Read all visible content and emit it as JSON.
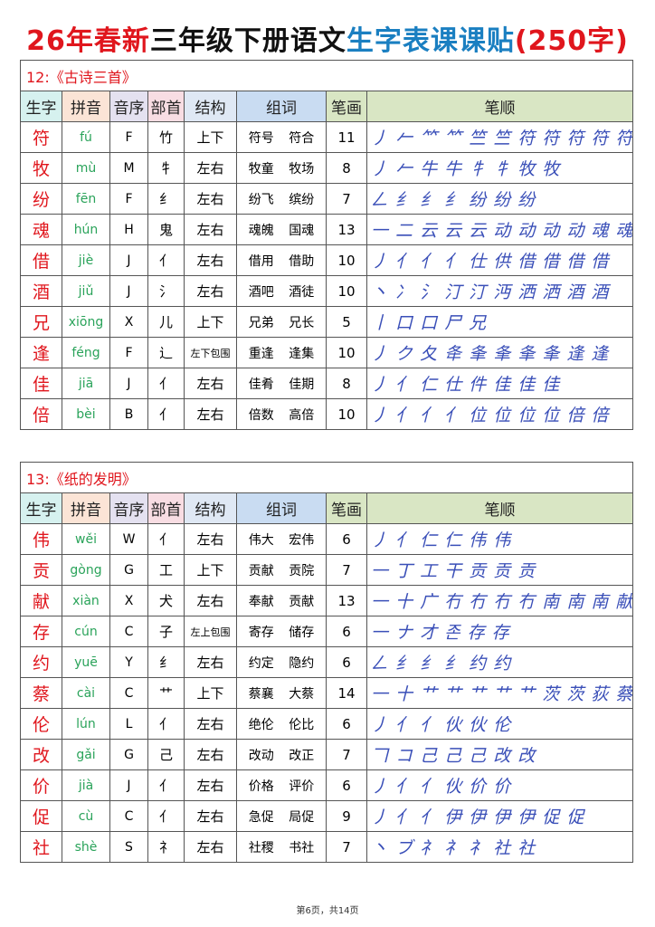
{
  "title": {
    "part1": "26年春新",
    "part2": "三年级下册语文",
    "part3": "生字表课课贴",
    "part4": "(250字)"
  },
  "headers": [
    "生字",
    "拼音",
    "音序",
    "部首",
    "结构",
    "组词",
    "笔画",
    "笔顺"
  ],
  "lessons": [
    {
      "title": "12:《古诗三首》",
      "rows": [
        {
          "char": "符",
          "pinyin": "fú",
          "order": "F",
          "radical": "竹",
          "structure": "上下",
          "words": "符号 符合",
          "strokes": "11",
          "sequence": "丿 𠂉 ⺮ ⺮ 竺 竺 符 符 符 符 符"
        },
        {
          "char": "牧",
          "pinyin": "mù",
          "order": "M",
          "radical": "牜",
          "structure": "左右",
          "words": "牧童 牧场",
          "strokes": "8",
          "sequence": "丿 𠂉 牛 牛 牜 牜 牧 牧"
        },
        {
          "char": "纷",
          "pinyin": "fēn",
          "order": "F",
          "radical": "纟",
          "structure": "左右",
          "words": "纷飞 缤纷",
          "strokes": "7",
          "sequence": "𠃋 纟 纟 纟 纷 纷 纷"
        },
        {
          "char": "魂",
          "pinyin": "hún",
          "order": "H",
          "radical": "鬼",
          "structure": "左右",
          "words": "魂魄 国魂",
          "strokes": "13",
          "sequence": "一 二 云 云 云 动 动 动 动 魂 魂 魂 魂"
        },
        {
          "char": "借",
          "pinyin": "jiè",
          "order": "J",
          "radical": "亻",
          "structure": "左右",
          "words": "借用 借助",
          "strokes": "10",
          "sequence": "丿 亻 亻 亻 仕 供 借 借 借 借"
        },
        {
          "char": "酒",
          "pinyin": "jiǔ",
          "order": "J",
          "radical": "氵",
          "structure": "左右",
          "words": "酒吧 酒徒",
          "strokes": "10",
          "sequence": "丶 冫 氵 汀 汀 沔 洒 洒 酒 酒"
        },
        {
          "char": "兄",
          "pinyin": "xiōng",
          "order": "X",
          "radical": "儿",
          "structure": "上下",
          "words": "兄弟 兄长",
          "strokes": "5",
          "sequence": "丨 口 口 尸 兄"
        },
        {
          "char": "逢",
          "pinyin": "féng",
          "order": "F",
          "radical": "辶",
          "structure": "左下包围",
          "words": "重逢 逢集",
          "strokes": "10",
          "sequence": "丿 ク 夂 夅 夆 夆 夆 夆 逢 逢"
        },
        {
          "char": "佳",
          "pinyin": "jiā",
          "order": "J",
          "radical": "亻",
          "structure": "左右",
          "words": "佳肴 佳期",
          "strokes": "8",
          "sequence": "丿 亻 仁 仕 件 佳 佳 佳"
        },
        {
          "char": "倍",
          "pinyin": "bèi",
          "order": "B",
          "radical": "亻",
          "structure": "左右",
          "words": "倍数 高倍",
          "strokes": "10",
          "sequence": "丿 亻 亻 亻 位 位 位 位 倍 倍"
        }
      ]
    },
    {
      "title": "13:《纸的发明》",
      "rows": [
        {
          "char": "伟",
          "pinyin": "wěi",
          "order": "W",
          "radical": "亻",
          "structure": "左右",
          "words": "伟大 宏伟",
          "strokes": "6",
          "sequence": "丿 亻 仁 仁 伟 伟"
        },
        {
          "char": "贡",
          "pinyin": "gòng",
          "order": "G",
          "radical": "工",
          "structure": "上下",
          "words": "贡献 贡院",
          "strokes": "7",
          "sequence": "一 丁 工 干 贡 贡 贡"
        },
        {
          "char": "献",
          "pinyin": "xiàn",
          "order": "X",
          "radical": "犬",
          "structure": "左右",
          "words": "奉献 贡献",
          "strokes": "13",
          "sequence": "一 十 广 冇 冇 冇 冇 南 南 南 献 献 献"
        },
        {
          "char": "存",
          "pinyin": "cún",
          "order": "C",
          "radical": "子",
          "structure": "左上包围",
          "words": "寄存 储存",
          "strokes": "6",
          "sequence": "一 ナ 才 존 存 存"
        },
        {
          "char": "约",
          "pinyin": "yuē",
          "order": "Y",
          "radical": "纟",
          "structure": "左右",
          "words": "约定 隐约",
          "strokes": "6",
          "sequence": "𠃋 纟 纟 纟 约 约"
        },
        {
          "char": "蔡",
          "pinyin": "cài",
          "order": "C",
          "radical": "艹",
          "structure": "上下",
          "words": "蔡襄 大蔡",
          "strokes": "14",
          "sequence": "一 十 艹 艹 艹 艹 艹 茨 茨 荻 蔡 蔡 蔡 蔡"
        },
        {
          "char": "伦",
          "pinyin": "lún",
          "order": "L",
          "radical": "亻",
          "structure": "左右",
          "words": "绝伦 伦比",
          "strokes": "6",
          "sequence": "丿 亻 亻 伙 伙 伦"
        },
        {
          "char": "改",
          "pinyin": "gǎi",
          "order": "G",
          "radical": "己",
          "structure": "左右",
          "words": "改动 改正",
          "strokes": "7",
          "sequence": "𠃍 コ 己 己 己 改 改"
        },
        {
          "char": "价",
          "pinyin": "jià",
          "order": "J",
          "radical": "亻",
          "structure": "左右",
          "words": "价格 评价",
          "strokes": "6",
          "sequence": "丿 亻 亻 伙 价 价"
        },
        {
          "char": "促",
          "pinyin": "cù",
          "order": "C",
          "radical": "亻",
          "structure": "左右",
          "words": "急促 局促",
          "strokes": "9",
          "sequence": "丿 亻 亻 伊 伊 伊 伊 促 促"
        },
        {
          "char": "社",
          "pinyin": "shè",
          "order": "S",
          "radical": "礻",
          "structure": "左右",
          "words": "社稷 书社",
          "strokes": "7",
          "sequence": "丶 ブ 礻 礻 礻 社 社"
        }
      ]
    }
  ],
  "footer": "第6页，共14页",
  "colors": {
    "char": "#e0161d",
    "pinyin": "#2aa35a",
    "title_blue": "#1a7fc1",
    "stroke_seq": "#3a4fb8"
  }
}
